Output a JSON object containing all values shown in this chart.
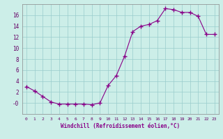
{
  "hours": [
    0,
    1,
    2,
    3,
    4,
    5,
    6,
    7,
    8,
    9,
    10,
    11,
    12,
    13,
    14,
    15,
    16,
    17,
    18,
    19,
    20,
    21,
    22,
    23
  ],
  "values": [
    3.0,
    2.2,
    1.2,
    0.2,
    -0.2,
    -0.2,
    -0.2,
    -0.2,
    -0.3,
    0.0,
    3.2,
    5.0,
    8.5,
    13.0,
    14.0,
    14.3,
    15.0,
    17.2,
    17.0,
    16.5,
    16.5,
    15.8,
    12.5,
    12.5
  ],
  "xlabel": "Windchill (Refroidissement éolien,°C)",
  "ylim": [
    -2,
    18
  ],
  "xlim": [
    -0.5,
    23.5
  ],
  "yticks": [
    0,
    2,
    4,
    6,
    8,
    10,
    12,
    14,
    16
  ],
  "ytick_labels": [
    "-0",
    "2",
    "4",
    "6",
    "8",
    "10",
    "12",
    "14",
    "16"
  ],
  "xticks": [
    0,
    1,
    2,
    3,
    4,
    5,
    6,
    7,
    8,
    9,
    10,
    11,
    12,
    13,
    14,
    15,
    16,
    17,
    18,
    19,
    20,
    21,
    22,
    23
  ],
  "line_color": "#880088",
  "marker": "+",
  "marker_size": 4,
  "marker_edge_width": 1.0,
  "line_width": 0.8,
  "bg_color": "#cceee8",
  "grid_color": "#99cccc",
  "axis_label_color": "#880088",
  "tick_label_color": "#660066"
}
